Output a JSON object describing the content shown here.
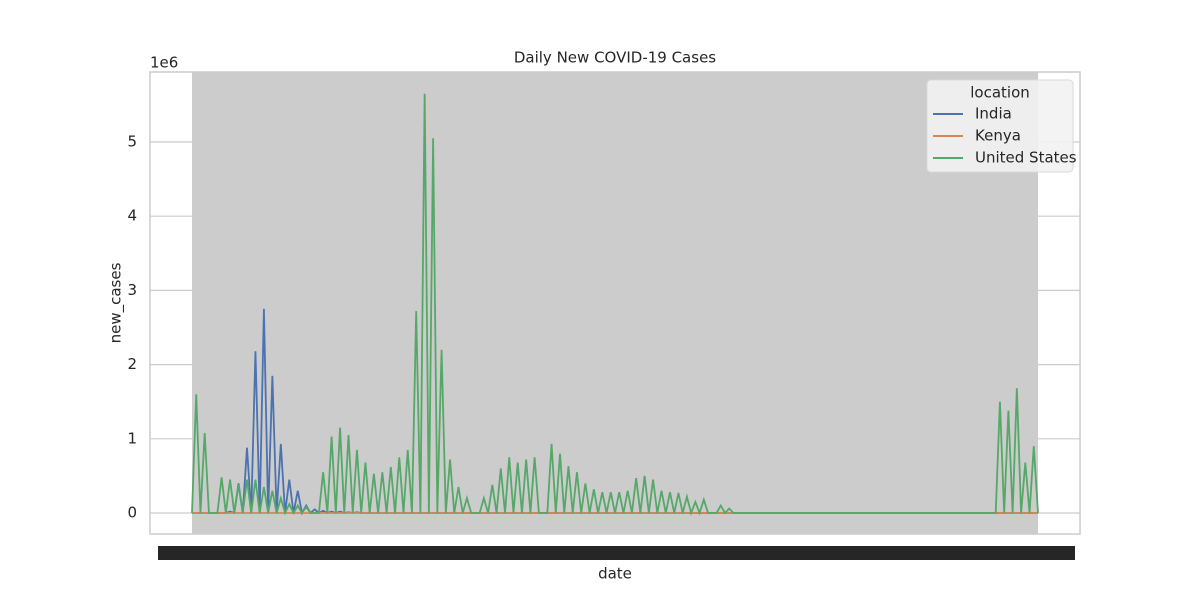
{
  "chart_data": {
    "type": "line",
    "title": "Daily New COVID-19 Cases",
    "x_label": "date",
    "y_label": "new_cases",
    "y_offset": "1e6",
    "legend_title": "location",
    "legend": "upper right",
    "grid": true,
    "categories": [
      null,
      null,
      null,
      null,
      null,
      null,
      null,
      null,
      null,
      null,
      null,
      null,
      null,
      null,
      null,
      null,
      null,
      null,
      null,
      null,
      null,
      null,
      null,
      null,
      null,
      null,
      null,
      null,
      null,
      null,
      null,
      null,
      null,
      null,
      null,
      null,
      null,
      null,
      null,
      null,
      null,
      null,
      null,
      null,
      null,
      null,
      null,
      null,
      null,
      null,
      null,
      null,
      null,
      null,
      null,
      null,
      null,
      null,
      null,
      null,
      null,
      null,
      null,
      null,
      null,
      null,
      null,
      null,
      null,
      null,
      null,
      null,
      null,
      null,
      null,
      null,
      null,
      null,
      null,
      null,
      null,
      null,
      null,
      null,
      null,
      null,
      null,
      null,
      null,
      null,
      null,
      null,
      null,
      null,
      null,
      null,
      null,
      null,
      null,
      null,
      null,
      null,
      null,
      null,
      null,
      null,
      null,
      null,
      null,
      null,
      null,
      null,
      null,
      null,
      null,
      null,
      null,
      null,
      null,
      null,
      null,
      null,
      null,
      null,
      null,
      null,
      null,
      null,
      null,
      null,
      null,
      null,
      null,
      null,
      null,
      null,
      null,
      null,
      null,
      null,
      null,
      null,
      null,
      null,
      null,
      null,
      null,
      null,
      null,
      null,
      null,
      null,
      null,
      null,
      null,
      null,
      null,
      null,
      null,
      null,
      null,
      null,
      null,
      null,
      null,
      null,
      null,
      null,
      null,
      null,
      null,
      null,
      null,
      null,
      null,
      null,
      null,
      null,
      null,
      null,
      null,
      null,
      null,
      null,
      null,
      null,
      null,
      null,
      null,
      null,
      null,
      null,
      null,
      null,
      null,
      null,
      null,
      null,
      null,
      null,
      null
    ],
    "ylim": [
      -0.283,
      5.943
    ],
    "yticks": [
      0,
      1,
      2,
      3,
      4,
      5
    ],
    "series": [
      {
        "name": "India",
        "color": "#4c72b0",
        "values": [
          0,
          0,
          0,
          0,
          0,
          0,
          0,
          0,
          0,
          0.02,
          0,
          0.4,
          0,
          0.88,
          0,
          2.18,
          0,
          2.75,
          0,
          1.85,
          0,
          0.93,
          0,
          0.45,
          0,
          0.3,
          0,
          0.1,
          0,
          0.05,
          0,
          0.03,
          0,
          0.02,
          0,
          0.02,
          0,
          0.01,
          0,
          0.01,
          0,
          0,
          0,
          0,
          0,
          0,
          0,
          0,
          0,
          0,
          0,
          0,
          0,
          0,
          0,
          0,
          0,
          0,
          0,
          0,
          0,
          0,
          0,
          0,
          0,
          0,
          0,
          0,
          0,
          0,
          0,
          0,
          0,
          0,
          0,
          0,
          0,
          0,
          0,
          0,
          0,
          0,
          0,
          0,
          0,
          0,
          0,
          0,
          0,
          0,
          0,
          0,
          0,
          0,
          0,
          0,
          0,
          0,
          0,
          0,
          0,
          0,
          0,
          0,
          0,
          0,
          0,
          0,
          0,
          0,
          0,
          0,
          0,
          0,
          0,
          0,
          0,
          0,
          0,
          0,
          0,
          0,
          0,
          0,
          0,
          0,
          0,
          0,
          0,
          0,
          0,
          0,
          0,
          0,
          0,
          0,
          0,
          0,
          0,
          0,
          0,
          0,
          0,
          0,
          0,
          0,
          0,
          0,
          0,
          0,
          0,
          0,
          0,
          0,
          0,
          0,
          0,
          0,
          0,
          0,
          0,
          0,
          0,
          0,
          0,
          0,
          0,
          0,
          0,
          0,
          0,
          0,
          0,
          0,
          0,
          0,
          0,
          0,
          0,
          0,
          0,
          0,
          0,
          0,
          0,
          0,
          0,
          0,
          0,
          0,
          0,
          0,
          0,
          0,
          0,
          0,
          0,
          0,
          0,
          0,
          0
        ]
      },
      {
        "name": "Kenya",
        "color": "#dd8452",
        "values": [
          0,
          0,
          0,
          0,
          0,
          0,
          0,
          0,
          0,
          0,
          0,
          0,
          0,
          0,
          0,
          0,
          0,
          0,
          0,
          0,
          0,
          0,
          0,
          0,
          0,
          0,
          0,
          0,
          0,
          0,
          0,
          0,
          0,
          0,
          0,
          0,
          0,
          0,
          0,
          0,
          0,
          0,
          0,
          0,
          0,
          0,
          0,
          0,
          0,
          0,
          0,
          0,
          0,
          0,
          0,
          0,
          0,
          0,
          0,
          0,
          0,
          0,
          0,
          0,
          0,
          0,
          0,
          0,
          0,
          0,
          0,
          0,
          0,
          0,
          0,
          0,
          0,
          0,
          0,
          0,
          0,
          0,
          0,
          0,
          0,
          0,
          0,
          0,
          0,
          0,
          0,
          0,
          0,
          0,
          0,
          0,
          0,
          0,
          0,
          0,
          0,
          0,
          0,
          0,
          0,
          0,
          0,
          0,
          0,
          0,
          0,
          0,
          0,
          0,
          0,
          0,
          0,
          0,
          0,
          0,
          0,
          0,
          0,
          0,
          0,
          0,
          0,
          0,
          0,
          0,
          0,
          0,
          0,
          0,
          0,
          0,
          0,
          0,
          0,
          0,
          0,
          0,
          0,
          0,
          0,
          0,
          0,
          0,
          0,
          0,
          0,
          0,
          0,
          0,
          0,
          0,
          0,
          0,
          0,
          0,
          0,
          0,
          0,
          0,
          0,
          0,
          0,
          0,
          0,
          0,
          0,
          0,
          0,
          0,
          0,
          0,
          0,
          0,
          0,
          0,
          0,
          0,
          0,
          0,
          0,
          0,
          0,
          0,
          0,
          0,
          0,
          0,
          0,
          0,
          0,
          0,
          0,
          0,
          0,
          0,
          0
        ]
      },
      {
        "name": "United States",
        "color": "#55a868",
        "values": [
          0,
          1.6,
          0,
          1.08,
          0,
          0,
          0,
          0.48,
          0,
          0.45,
          0,
          0.38,
          0,
          0.45,
          0,
          0.45,
          0,
          0.35,
          0,
          0.3,
          0,
          0.2,
          0,
          0.12,
          0,
          0.1,
          0,
          0.08,
          0,
          0,
          0,
          0.55,
          0,
          1.03,
          0,
          1.15,
          0,
          1.05,
          0,
          0.85,
          0,
          0.68,
          0,
          0.53,
          0,
          0.55,
          0,
          0.62,
          0,
          0.75,
          0,
          0.85,
          0,
          2.72,
          0,
          5.65,
          0,
          5.05,
          0,
          2.2,
          0,
          0.72,
          0,
          0.35,
          0,
          0.2,
          0,
          0,
          0,
          0.2,
          0,
          0.38,
          0,
          0.6,
          0,
          0.75,
          0,
          0.68,
          0,
          0.72,
          0,
          0.75,
          0,
          0,
          0,
          0.93,
          0,
          0.8,
          0,
          0.63,
          0,
          0.55,
          0,
          0.4,
          0,
          0.32,
          0,
          0.28,
          0,
          0.28,
          0,
          0.28,
          0,
          0.3,
          0,
          0.47,
          0,
          0.5,
          0,
          0.45,
          0,
          0.3,
          0,
          0.28,
          0,
          0.27,
          0,
          0.22,
          0,
          0.15,
          0,
          0.18,
          0,
          0,
          0,
          0.1,
          0,
          0.06,
          0,
          0,
          0,
          0,
          0,
          0,
          0,
          0,
          0,
          0,
          0,
          0,
          0,
          0,
          0,
          0,
          0,
          0,
          0,
          0,
          0,
          0,
          0,
          0,
          0,
          0,
          0,
          0,
          0,
          0,
          0,
          0,
          0,
          0,
          0,
          0,
          0,
          0,
          0,
          0,
          0,
          0,
          0,
          0,
          0,
          0,
          0,
          0,
          0,
          0,
          0,
          0,
          0,
          0,
          0,
          0,
          0,
          0,
          0,
          0,
          0,
          0,
          0,
          1.5,
          0,
          1.38,
          0,
          1.68,
          0,
          0.68,
          0,
          0.9,
          0
        ]
      }
    ]
  }
}
